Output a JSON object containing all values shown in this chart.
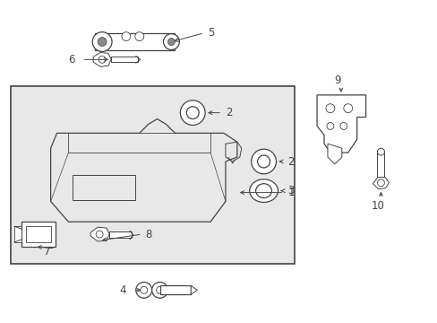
{
  "background_color": "#ffffff",
  "box_bg": "#e8e8e8",
  "line_color": "#444444",
  "figsize": [
    4.89,
    3.6
  ],
  "dpi": 100
}
